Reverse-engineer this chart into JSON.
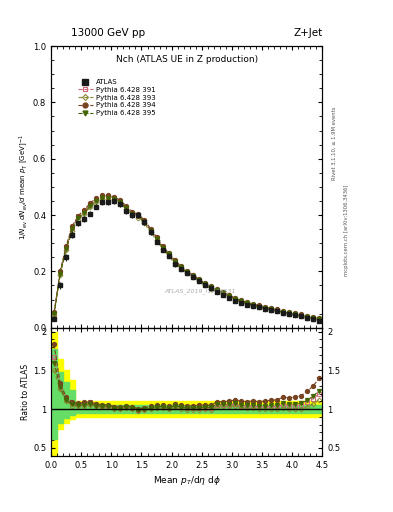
{
  "title_top": "13000 GeV pp",
  "title_right": "Z+Jet",
  "plot_title": "Nch (ATLAS UE in Z production)",
  "watermark": "ATLAS_2019_I1736531",
  "rivet_text": "Rivet 3.1.10, ≥ 1.9M events",
  "mcplots_text": "mcplots.cern.ch [arXiv:1306.3436]",
  "xlim": [
    0,
    4.5
  ],
  "ylim_main": [
    0,
    1.0
  ],
  "ylim_ratio": [
    0.4,
    2.05
  ],
  "x_edges": [
    0.0,
    0.1,
    0.2,
    0.3,
    0.4,
    0.5,
    0.6,
    0.7,
    0.8,
    0.9,
    1.0,
    1.1,
    1.2,
    1.3,
    1.4,
    1.5,
    1.6,
    1.7,
    1.8,
    1.9,
    2.0,
    2.1,
    2.2,
    2.3,
    2.4,
    2.5,
    2.6,
    2.7,
    2.8,
    2.9,
    3.0,
    3.1,
    3.2,
    3.3,
    3.4,
    3.5,
    3.6,
    3.7,
    3.8,
    3.9,
    4.0,
    4.1,
    4.2,
    4.3,
    4.4,
    4.5
  ],
  "x_centers": [
    0.05,
    0.15,
    0.25,
    0.35,
    0.45,
    0.55,
    0.65,
    0.75,
    0.85,
    0.95,
    1.05,
    1.15,
    1.25,
    1.35,
    1.45,
    1.55,
    1.65,
    1.75,
    1.85,
    1.95,
    2.05,
    2.15,
    2.25,
    2.35,
    2.45,
    2.55,
    2.65,
    2.75,
    2.85,
    2.95,
    3.05,
    3.15,
    3.25,
    3.35,
    3.45,
    3.55,
    3.65,
    3.75,
    3.85,
    3.95,
    4.05,
    4.15,
    4.25,
    4.35,
    4.45
  ],
  "atlas_y": [
    0.03,
    0.15,
    0.25,
    0.33,
    0.37,
    0.385,
    0.405,
    0.43,
    0.445,
    0.445,
    0.45,
    0.44,
    0.415,
    0.4,
    0.4,
    0.375,
    0.34,
    0.305,
    0.275,
    0.255,
    0.225,
    0.21,
    0.195,
    0.18,
    0.165,
    0.15,
    0.14,
    0.125,
    0.115,
    0.105,
    0.095,
    0.088,
    0.082,
    0.076,
    0.072,
    0.067,
    0.062,
    0.058,
    0.052,
    0.048,
    0.044,
    0.04,
    0.035,
    0.03,
    0.025
  ],
  "atlas_yerr": [
    0.006,
    0.012,
    0.012,
    0.012,
    0.01,
    0.01,
    0.01,
    0.01,
    0.01,
    0.01,
    0.01,
    0.01,
    0.01,
    0.01,
    0.01,
    0.01,
    0.01,
    0.009,
    0.008,
    0.008,
    0.008,
    0.007,
    0.007,
    0.006,
    0.006,
    0.006,
    0.005,
    0.005,
    0.005,
    0.004,
    0.004,
    0.004,
    0.004,
    0.003,
    0.003,
    0.003,
    0.003,
    0.003,
    0.003,
    0.002,
    0.002,
    0.002,
    0.002,
    0.002,
    0.002
  ],
  "p391_y": [
    0.05,
    0.195,
    0.285,
    0.355,
    0.395,
    0.415,
    0.44,
    0.455,
    0.465,
    0.465,
    0.46,
    0.448,
    0.428,
    0.408,
    0.398,
    0.378,
    0.348,
    0.318,
    0.285,
    0.26,
    0.235,
    0.215,
    0.198,
    0.183,
    0.168,
    0.153,
    0.142,
    0.132,
    0.121,
    0.111,
    0.101,
    0.092,
    0.085,
    0.079,
    0.074,
    0.069,
    0.064,
    0.06,
    0.055,
    0.05,
    0.046,
    0.042,
    0.038,
    0.034,
    0.03
  ],
  "p393_y": [
    0.045,
    0.188,
    0.275,
    0.345,
    0.384,
    0.403,
    0.428,
    0.445,
    0.456,
    0.457,
    0.452,
    0.44,
    0.42,
    0.4,
    0.39,
    0.37,
    0.34,
    0.31,
    0.28,
    0.255,
    0.23,
    0.21,
    0.194,
    0.179,
    0.164,
    0.15,
    0.139,
    0.129,
    0.119,
    0.109,
    0.099,
    0.09,
    0.083,
    0.077,
    0.072,
    0.067,
    0.062,
    0.058,
    0.053,
    0.048,
    0.044,
    0.04,
    0.036,
    0.032,
    0.028
  ],
  "p394_y": [
    0.055,
    0.2,
    0.29,
    0.36,
    0.398,
    0.418,
    0.443,
    0.46,
    0.47,
    0.47,
    0.465,
    0.452,
    0.432,
    0.412,
    0.402,
    0.382,
    0.352,
    0.322,
    0.29,
    0.265,
    0.24,
    0.22,
    0.203,
    0.188,
    0.173,
    0.158,
    0.147,
    0.137,
    0.126,
    0.116,
    0.106,
    0.097,
    0.09,
    0.084,
    0.079,
    0.074,
    0.069,
    0.065,
    0.06,
    0.055,
    0.051,
    0.047,
    0.043,
    0.039,
    0.035
  ],
  "p395_y": [
    0.048,
    0.192,
    0.28,
    0.35,
    0.389,
    0.408,
    0.433,
    0.45,
    0.461,
    0.462,
    0.457,
    0.445,
    0.425,
    0.405,
    0.395,
    0.375,
    0.345,
    0.315,
    0.284,
    0.26,
    0.235,
    0.215,
    0.198,
    0.183,
    0.168,
    0.154,
    0.143,
    0.133,
    0.122,
    0.112,
    0.102,
    0.093,
    0.086,
    0.08,
    0.075,
    0.07,
    0.065,
    0.061,
    0.056,
    0.051,
    0.047,
    0.043,
    0.039,
    0.035,
    0.031
  ],
  "atlas_color": "#1a1a1a",
  "p391_color": "#cc6677",
  "p393_color": "#888833",
  "p394_color": "#774422",
  "p395_color": "#446600",
  "yellow_band_x": [
    0.0,
    0.1,
    0.1,
    0.2,
    0.2,
    0.3,
    0.3,
    0.4,
    0.4,
    4.5
  ],
  "yellow_band_ylo": [
    0.4,
    0.4,
    0.75,
    0.75,
    0.82,
    0.82,
    0.87,
    0.87,
    0.9,
    0.9
  ],
  "yellow_band_yhi": [
    2.0,
    2.0,
    1.65,
    1.65,
    1.5,
    1.5,
    1.38,
    1.38,
    1.1,
    1.1
  ],
  "green_band_x": [
    0.0,
    0.1,
    0.1,
    0.2,
    0.2,
    0.3,
    0.3,
    0.4,
    0.4,
    4.5
  ],
  "green_band_ylo": [
    0.62,
    0.62,
    0.82,
    0.82,
    0.88,
    0.88,
    0.92,
    0.92,
    0.95,
    0.95
  ],
  "green_band_yhi": [
    1.78,
    1.78,
    1.48,
    1.48,
    1.35,
    1.35,
    1.25,
    1.25,
    1.05,
    1.05
  ]
}
